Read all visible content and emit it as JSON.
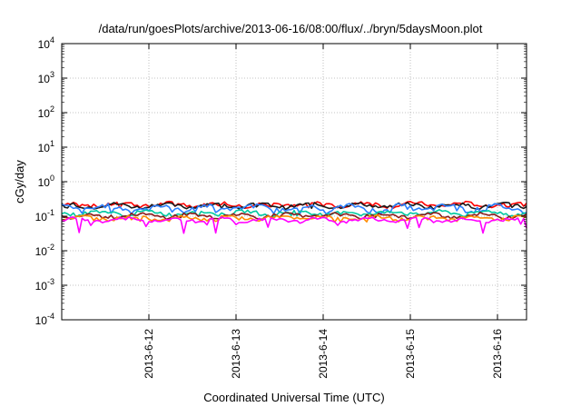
{
  "chart_data": {
    "type": "line",
    "title": "/data/run/goesPlots/archive/2013-06-16/08:00/flux/../bryn/5daysMoon.plot",
    "xlabel": "Coordinated Universal Time (UTC)",
    "ylabel": "cGy/day",
    "yscale": "log",
    "ylim": [
      0.0001,
      10000
    ],
    "y_ticks": [
      {
        "base": "10",
        "exp": "-4",
        "value": 0.0001
      },
      {
        "base": "10",
        "exp": "-3",
        "value": 0.001
      },
      {
        "base": "10",
        "exp": "-2",
        "value": 0.01
      },
      {
        "base": "10",
        "exp": "-1",
        "value": 0.1
      },
      {
        "base": "10",
        "exp": "0",
        "value": 1
      },
      {
        "base": "10",
        "exp": "1",
        "value": 10
      },
      {
        "base": "10",
        "exp": "2",
        "value": 100
      },
      {
        "base": "10",
        "exp": "3",
        "value": 1000
      },
      {
        "base": "10",
        "exp": "4",
        "value": 10000
      }
    ],
    "xlim": [
      "2013-06-11T00:00",
      "2013-06-16T08:00"
    ],
    "x_ticks": [
      {
        "label": "2013-6-12",
        "value": "2013-06-12"
      },
      {
        "label": "2013-6-13",
        "value": "2013-06-13"
      },
      {
        "label": "2013-6-14",
        "value": "2013-06-14"
      },
      {
        "label": "2013-6-15",
        "value": "2013-06-15"
      },
      {
        "label": "2013-6-16",
        "value": "2013-06-16"
      }
    ],
    "grid": true,
    "series": [
      {
        "color": "#ff0000",
        "base": 0.22,
        "amp": 0.09,
        "dips": 0.2
      },
      {
        "color": "#1a1a1a",
        "base": 0.205,
        "amp": 0.08,
        "dips": 0.2
      },
      {
        "color": "#2a7fff",
        "base": 0.175,
        "amp": 0.1,
        "dips": 0.35
      },
      {
        "color": "#00c8a0",
        "base": 0.125,
        "amp": 0.05,
        "dips": 0.2
      },
      {
        "color": "#8b1a1a",
        "base": 0.105,
        "amp": 0.04,
        "dips": 0.2
      },
      {
        "color": "#ff8c00",
        "base": 0.09,
        "amp": 0.03,
        "dips": 0.25
      },
      {
        "color": "#ff00ff",
        "base": 0.078,
        "amp": 0.03,
        "dips": 0.6
      }
    ]
  }
}
